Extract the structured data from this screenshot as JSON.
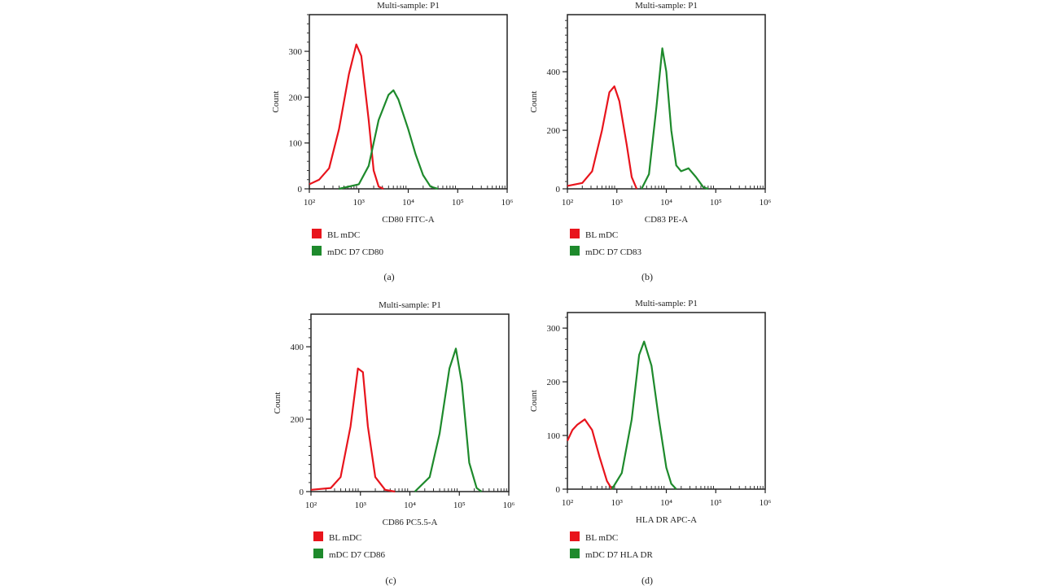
{
  "chart_data": [
    {
      "type": "line",
      "panel_label": "(a)",
      "title": "Multi-sample: P1",
      "xlabel": "CD80 FITC-A",
      "ylabel": "Count",
      "x_scale": "log",
      "xlim": [
        100,
        1000000
      ],
      "ylim": [
        0,
        380
      ],
      "x_ticks": [
        100,
        1000,
        10000,
        100000,
        1000000
      ],
      "x_tick_labels": [
        "10²",
        "10³",
        "10⁴",
        "10⁵",
        "10⁶"
      ],
      "y_ticks": [
        0,
        100,
        200,
        300
      ],
      "y_tick_labels": [
        "0",
        "100",
        "200",
        "300"
      ],
      "legend_position": "bottom-left",
      "series": [
        {
          "name": "BL mDC",
          "color": "#e8141c",
          "x": [
            100,
            158,
            251,
            398,
            631,
            891,
            1122,
            1585,
            1995,
            2512,
            3162
          ],
          "y": [
            10,
            20,
            45,
            130,
            250,
            315,
            290,
            150,
            40,
            5,
            0
          ]
        },
        {
          "name": "mDC D7 CD80",
          "color": "#1e8a2c",
          "x": [
            398,
            1000,
            1585,
            2512,
            3981,
            5012,
            6310,
            10000,
            14125,
            19953,
            28184,
            39811
          ],
          "y": [
            0,
            10,
            50,
            150,
            205,
            215,
            195,
            130,
            75,
            30,
            5,
            0
          ]
        }
      ]
    },
    {
      "type": "line",
      "panel_label": "(b)",
      "title": "Multi-sample: P1",
      "xlabel": "CD83 PE-A",
      "ylabel": "Count",
      "x_scale": "log",
      "xlim": [
        100,
        1000000
      ],
      "ylim": [
        0,
        595
      ],
      "x_ticks": [
        100,
        1000,
        10000,
        100000,
        1000000
      ],
      "x_tick_labels": [
        "10²",
        "10³",
        "10⁴",
        "10⁵",
        "10⁶"
      ],
      "y_ticks": [
        0,
        200,
        400
      ],
      "y_tick_labels": [
        "0",
        "200",
        "400"
      ],
      "legend_position": "bottom-left",
      "series": [
        {
          "name": "BL mDC",
          "color": "#e8141c",
          "x": [
            100,
            200,
            316,
            501,
            708,
            891,
            1122,
            1585,
            1995,
            2512
          ],
          "y": [
            10,
            20,
            60,
            200,
            330,
            350,
            300,
            150,
            40,
            0
          ]
        },
        {
          "name": "mDC D7 CD83",
          "color": "#1e8a2c",
          "x": [
            3162,
            4467,
            6310,
            8318,
            10000,
            12589,
            15849,
            19953,
            28184,
            39811,
            56234,
            70795
          ],
          "y": [
            0,
            50,
            280,
            480,
            400,
            200,
            80,
            60,
            70,
            40,
            5,
            0
          ]
        }
      ]
    },
    {
      "type": "line",
      "panel_label": "(c)",
      "title": "Multi-sample: P1",
      "xlabel": "CD86 PC5.5-A",
      "ylabel": "Count",
      "x_scale": "log",
      "xlim": [
        100,
        1000000
      ],
      "ylim": [
        0,
        490
      ],
      "x_ticks": [
        100,
        1000,
        10000,
        100000,
        1000000
      ],
      "x_tick_labels": [
        "10²",
        "10³",
        "10⁴",
        "10⁵",
        "10⁶"
      ],
      "y_ticks": [
        0,
        200,
        400
      ],
      "y_tick_labels": [
        "0",
        "200",
        "400"
      ],
      "legend_position": "bottom-left",
      "series": [
        {
          "name": "BL mDC",
          "color": "#e8141c",
          "x": [
            100,
            251,
            398,
            631,
            891,
            1122,
            1413,
            1995,
            3162,
            5012
          ],
          "y": [
            5,
            10,
            40,
            180,
            340,
            330,
            180,
            40,
            5,
            0
          ]
        },
        {
          "name": "mDC D7 CD86",
          "color": "#1e8a2c",
          "x": [
            12589,
            25119,
            39811,
            63096,
            85114,
            112202,
            158489,
            223872,
            281838
          ],
          "y": [
            0,
            40,
            160,
            340,
            395,
            300,
            80,
            10,
            0
          ]
        }
      ]
    },
    {
      "type": "line",
      "panel_label": "(d)",
      "title": "Multi-sample: P1",
      "xlabel": "HLA DR APC-A",
      "ylabel": "Count",
      "x_scale": "log",
      "xlim": [
        100,
        1000000
      ],
      "ylim": [
        0,
        329
      ],
      "x_ticks": [
        100,
        1000,
        10000,
        100000,
        1000000
      ],
      "x_tick_labels": [
        "10²",
        "10³",
        "10⁴",
        "10⁵",
        "10⁶"
      ],
      "y_ticks": [
        0,
        100,
        200,
        300
      ],
      "y_tick_labels": [
        "0",
        "100",
        "200",
        "300"
      ],
      "legend_position": "bottom-left",
      "series": [
        {
          "name": "BL mDC",
          "color": "#e8141c",
          "x": [
            100,
            126,
            158,
            224,
            316,
            447,
            631,
            794
          ],
          "y": [
            90,
            110,
            120,
            130,
            110,
            60,
            15,
            0
          ]
        },
        {
          "name": "mDC D7 HLA DR",
          "color": "#1e8a2c",
          "x": [
            794,
            1259,
            1995,
            2818,
            3548,
            5012,
            7079,
            10000,
            12589,
            15849
          ],
          "y": [
            0,
            30,
            130,
            250,
            275,
            230,
            130,
            40,
            10,
            0
          ]
        }
      ]
    }
  ]
}
